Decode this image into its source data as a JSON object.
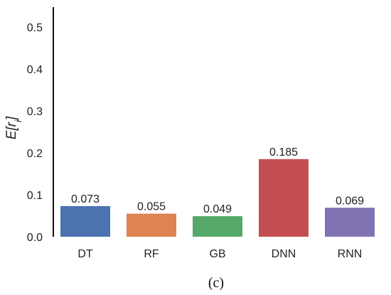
{
  "chart_data": {
    "type": "bar",
    "categories": [
      "DT",
      "RF",
      "GB",
      "DNN",
      "RNN"
    ],
    "values": [
      0.073,
      0.055,
      0.049,
      0.185,
      0.069
    ],
    "value_labels": [
      "0.073",
      "0.055",
      "0.049",
      "0.185",
      "0.069"
    ],
    "colors": [
      "#4c72b0",
      "#dd8452",
      "#55a868",
      "#c44e52",
      "#8172b3"
    ],
    "ylabel": "E[r_i]",
    "ylim": [
      0,
      0.55
    ],
    "yticks": [
      0.0,
      0.1,
      0.2,
      0.3,
      0.4,
      0.5
    ],
    "ytick_labels": [
      "0.0",
      "0.1",
      "0.2",
      "0.3",
      "0.4",
      "0.5"
    ],
    "grid": false
  },
  "caption": "(c)"
}
